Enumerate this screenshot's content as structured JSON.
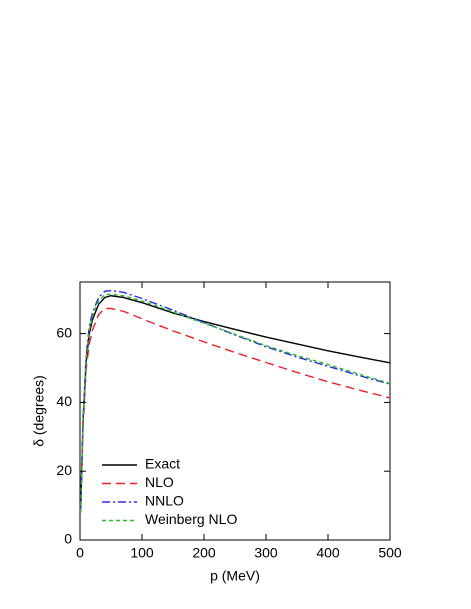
{
  "chart_data": {
    "type": "line",
    "x_label": "p (MeV)",
    "y_label": "δ (degrees)",
    "x": [
      1,
      5,
      10,
      15,
      20,
      30,
      40,
      50,
      70,
      100,
      150,
      200,
      250,
      300,
      350,
      400,
      450,
      500
    ],
    "series": [
      {
        "name": "Exact",
        "color": "#000000",
        "dash": "solid",
        "values": [
          8,
          35,
          52,
          60,
          64,
          68.5,
          70.5,
          71,
          70.5,
          69,
          66,
          63.5,
          61.2,
          59,
          57,
          55,
          53.2,
          51.5
        ]
      },
      {
        "name": "NLO",
        "color": "#e8212a",
        "dash": "dashed",
        "values": [
          8,
          33,
          50,
          57,
          61,
          65.5,
          67.3,
          67.3,
          66.5,
          64.3,
          60.8,
          57.6,
          54.5,
          51.6,
          48.7,
          46,
          43.6,
          41.3
        ]
      },
      {
        "name": "NNLO",
        "color": "#2a2ae0",
        "dash": "dashdot",
        "values": [
          8,
          36,
          54,
          62,
          66,
          70.5,
          72.3,
          72.5,
          72,
          70.2,
          66.8,
          63.2,
          59.6,
          56.2,
          53.2,
          50.5,
          47.8,
          45.3
        ]
      },
      {
        "name": "Weinberg NLO",
        "color": "#2db82d",
        "dash": "dotted",
        "values": [
          8,
          35,
          53,
          61,
          65,
          69.5,
          71.3,
          71.5,
          71,
          69.5,
          66.3,
          63,
          59.8,
          56.5,
          53.6,
          51,
          48.2,
          45.5
        ]
      }
    ],
    "xlim": [
      0,
      500
    ],
    "ylim": [
      0,
      75
    ],
    "xticks": [
      0,
      100,
      200,
      300,
      400,
      500
    ],
    "yticks": [
      0,
      20,
      40,
      60
    ],
    "legend": "lower-left"
  }
}
